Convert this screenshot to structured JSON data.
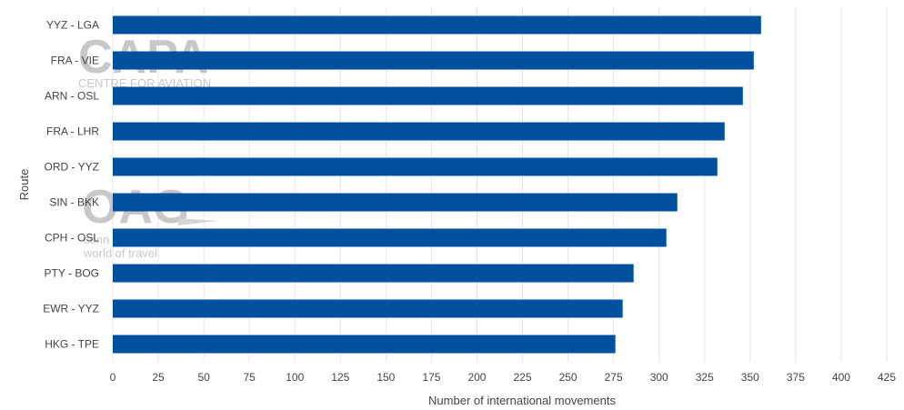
{
  "watermarks": {
    "capa_logo": "CAPA",
    "capa_tagline": "CENTRE FOR AVIATION",
    "oag_logo": "OAG",
    "oag_line1": "conn",
    "oag_line2": "world of travel"
  },
  "chart_data": {
    "type": "bar",
    "orientation": "horizontal",
    "categories": [
      "YYZ - LGA",
      "FRA - VIE",
      "ARN - OSL",
      "FRA - LHR",
      "ORD - YYZ",
      "SIN - BKK",
      "CPH - OSL",
      "PTY - BOG",
      "EWR - YYZ",
      "HKG - TPE"
    ],
    "values": [
      356,
      352,
      346,
      336,
      332,
      310,
      304,
      286,
      280,
      276
    ],
    "xlabel": "Number of international movements",
    "ylabel": "Route",
    "xlim": [
      0,
      425
    ],
    "xticks": [
      0,
      25,
      50,
      75,
      100,
      125,
      150,
      175,
      200,
      225,
      250,
      275,
      300,
      325,
      350,
      375,
      400,
      425
    ],
    "grid": "vertical",
    "bar_color": "#0050a0",
    "grid_color": "#e6e6e6"
  }
}
